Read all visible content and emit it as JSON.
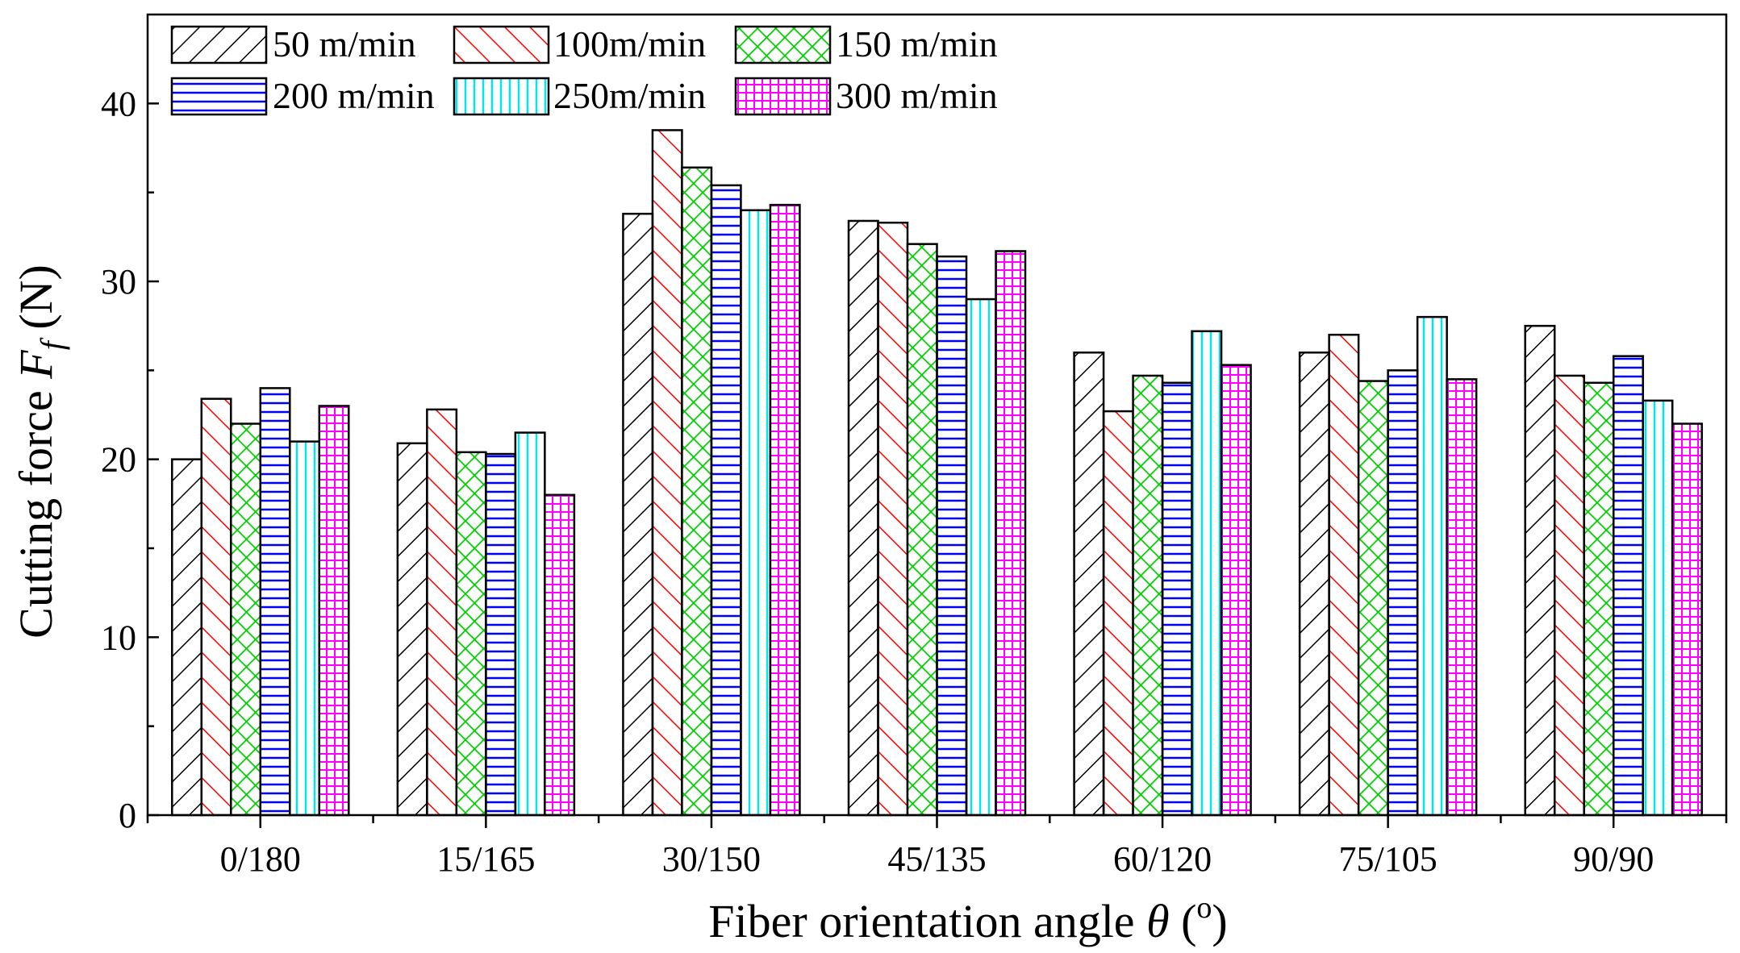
{
  "chart_data": {
    "type": "bar",
    "title": "",
    "xlabel": "Fiber orientation angle θ (°)",
    "xlabel_parts": {
      "text": "Fiber orientation angle",
      "symbol": "θ",
      "paren_open": "(",
      "superscript": "o",
      "paren_close": ")"
    },
    "ylabel": "Cutting force Ff (N)",
    "ylabel_parts": {
      "text": "Cutting force",
      "symbol": "F",
      "subscript": "f",
      "unit": "(N)"
    },
    "ylim": [
      0,
      45
    ],
    "yticks": [
      0,
      10,
      20,
      30,
      40
    ],
    "grid": false,
    "legend_position": "top-left",
    "categories": [
      "0/180",
      "15/165",
      "30/150",
      "45/135",
      "60/120",
      "75/105",
      "90/90"
    ],
    "series": [
      {
        "name": "50 m/min",
        "color": "#000000",
        "pattern": "diag-right",
        "values": [
          20.0,
          20.9,
          33.8,
          33.4,
          26.0,
          26.0,
          27.5
        ]
      },
      {
        "name": "100m/min",
        "color": "#ff0000",
        "pattern": "diag-left",
        "values": [
          23.4,
          22.8,
          38.5,
          33.3,
          22.7,
          27.0,
          24.7
        ]
      },
      {
        "name": "150 m/min",
        "color": "#00cc00",
        "pattern": "crosshatch",
        "values": [
          22.0,
          20.4,
          36.4,
          32.1,
          24.7,
          24.4,
          24.3
        ]
      },
      {
        "name": "200 m/min",
        "color": "#0000ff",
        "pattern": "horizontal",
        "values": [
          24.0,
          20.3,
          35.4,
          31.4,
          24.3,
          25.0,
          25.8
        ]
      },
      {
        "name": "250m/min",
        "color": "#00e5ee",
        "pattern": "vertical",
        "values": [
          21.0,
          21.5,
          34.0,
          29.0,
          27.2,
          28.0,
          23.3
        ]
      },
      {
        "name": "300 m/min",
        "color": "#ff00ff",
        "pattern": "grid",
        "values": [
          23.0,
          18.0,
          34.3,
          31.7,
          25.3,
          24.5,
          22.0
        ]
      }
    ]
  }
}
